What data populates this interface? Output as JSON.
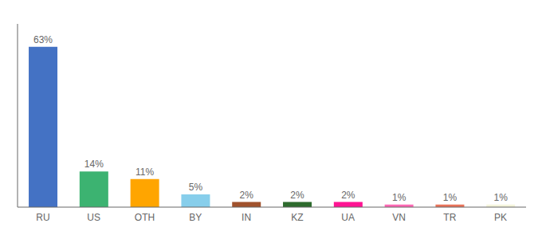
{
  "chart_data": {
    "type": "bar",
    "categories": [
      "RU",
      "US",
      "OTH",
      "BY",
      "IN",
      "KZ",
      "UA",
      "VN",
      "TR",
      "PK"
    ],
    "values": [
      63,
      14,
      11,
      5,
      2,
      2,
      2,
      1,
      1,
      1
    ],
    "value_labels": [
      "63%",
      "14%",
      "11%",
      "5%",
      "2%",
      "2%",
      "2%",
      "1%",
      "1%",
      "1%"
    ],
    "colors": [
      "#4472C4",
      "#3CB371",
      "#FFA500",
      "#87CEEB",
      "#A0522D",
      "#2E6B2E",
      "#FF1493",
      "#FF69B4",
      "#E8735A",
      "#F5F5DC"
    ],
    "ylim": [
      0,
      72
    ],
    "data_labels": true,
    "tick_labels": "x",
    "grid": false
  }
}
